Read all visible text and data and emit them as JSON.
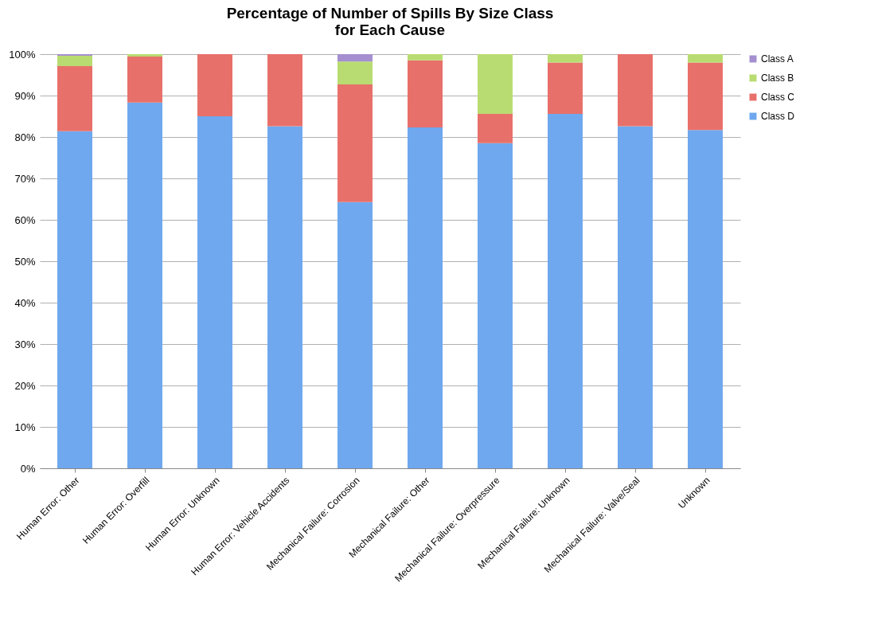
{
  "chart_data": {
    "type": "bar",
    "title": "Percentage of Number of Spills By Size Class\nfor Each Cause",
    "stacked": true,
    "legend": "right",
    "grid": "y",
    "categories": [
      "Human Error: Other",
      "Human Error: Overfill",
      "Human Error: Unknown",
      "Human Error: Vehicle Accidents",
      "Mechanical Failure: Corrosion",
      "Mechanical Failure: Other",
      "Mechanical Failure: Overpressure",
      "Mechanical Failure: Unknown",
      "Mechanical Failure: Valve/Seal",
      "Unknown"
    ],
    "series": [
      {
        "name": "Class D",
        "color": "#6fa8ee",
        "values": [
          81.4,
          88.3,
          85.0,
          82.6,
          64.3,
          82.3,
          78.5,
          85.6,
          82.6,
          81.7
        ]
      },
      {
        "name": "Class C",
        "color": "#e8706a",
        "values": [
          15.7,
          11.1,
          15.0,
          17.4,
          28.4,
          16.2,
          7.1,
          12.4,
          17.4,
          16.3
        ]
      },
      {
        "name": "Class B",
        "color": "#b9dc72",
        "values": [
          2.5,
          0.6,
          null,
          null,
          5.5,
          1.5,
          14.4,
          2.0,
          null,
          2.0
        ]
      },
      {
        "name": "Class A",
        "color": "#a58fd0",
        "values": [
          0.4,
          null,
          null,
          null,
          1.8,
          null,
          null,
          null,
          null,
          null
        ]
      }
    ],
    "ylim": [
      0,
      100
    ],
    "yticks": [
      {
        "value": 0,
        "label": "0%"
      },
      {
        "value": 10,
        "label": "10%"
      },
      {
        "value": 20,
        "label": "20%"
      },
      {
        "value": 30,
        "label": "30%"
      },
      {
        "value": 40,
        "label": "40%"
      },
      {
        "value": 50,
        "label": "50%"
      },
      {
        "value": 60,
        "label": "60%"
      },
      {
        "value": 70,
        "label": "70%"
      },
      {
        "value": 80,
        "label": "80%"
      },
      {
        "value": 90,
        "label": "90%"
      },
      {
        "value": 100,
        "label": "100%"
      }
    ]
  }
}
